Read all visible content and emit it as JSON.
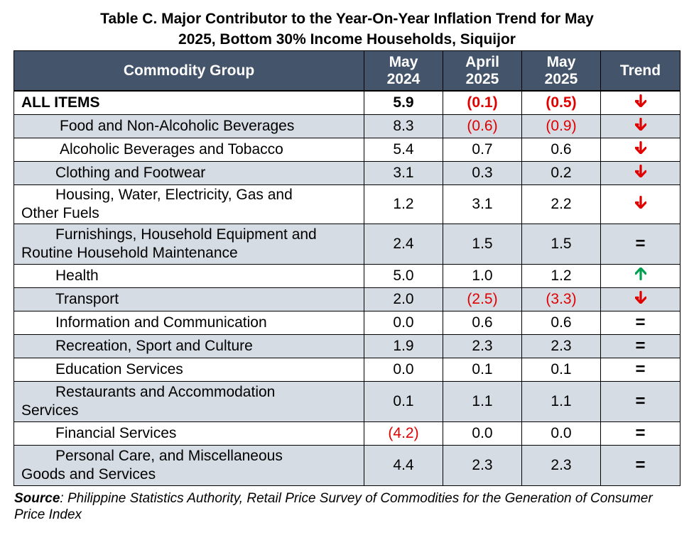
{
  "title": {
    "line1": "Table C. Major Contributor to the Year-On-Year Inflation Trend for May",
    "line2": "2025, Bottom 30% Income Households, Siquijor"
  },
  "headers": {
    "commodity": "Commodity Group",
    "col1": [
      "May",
      "2024"
    ],
    "col2": [
      "April",
      "2025"
    ],
    "col3": [
      "May",
      "2025"
    ],
    "trend": "Trend"
  },
  "rows": [
    {
      "name": "ALL ITEMS",
      "may2024": "5.9",
      "apr2025": "(0.1)",
      "may2025": "(0.5)",
      "trend": "down",
      "bold": true,
      "shaded": false,
      "indent": 0,
      "neg": [
        false,
        true,
        true
      ]
    },
    {
      "name": "Food and Non-Alcoholic Beverages",
      "may2024": "8.3",
      "apr2025": "(0.6)",
      "may2025": "(0.9)",
      "trend": "down",
      "shaded": true,
      "indent": 64,
      "neg": [
        false,
        true,
        true
      ]
    },
    {
      "name": "Alcoholic Beverages and Tobacco",
      "may2024": "5.4",
      "apr2025": "0.7",
      "may2025": "0.6",
      "trend": "down",
      "shaded": false,
      "indent": 64,
      "neg": [
        false,
        false,
        false
      ]
    },
    {
      "name": "Clothing and Footwear",
      "may2024": "3.1",
      "apr2025": "0.3",
      "may2025": "0.2",
      "trend": "down",
      "shaded": true,
      "indent": 58,
      "neg": [
        false,
        false,
        false
      ]
    },
    {
      "name1": "Housing, Water, Electricity, Gas and",
      "name2": "Other Fuels",
      "may2024": "1.2",
      "apr2025": "3.1",
      "may2025": "2.2",
      "trend": "down",
      "shaded": false,
      "neg": [
        false,
        false,
        false
      ]
    },
    {
      "name1": "Furnishings, Household Equipment and",
      "name2": "Routine Household Maintenance",
      "may2024": "2.4",
      "apr2025": "1.5",
      "may2025": "1.5",
      "trend": "equal",
      "shaded": true,
      "neg": [
        false,
        false,
        false
      ]
    },
    {
      "name": "Health",
      "may2024": "5.0",
      "apr2025": "1.0",
      "may2025": "1.2",
      "trend": "up",
      "shaded": false,
      "indent": 58,
      "neg": [
        false,
        false,
        false
      ]
    },
    {
      "name": "Transport",
      "may2024": "2.0",
      "apr2025": "(2.5)",
      "may2025": "(3.3)",
      "trend": "down",
      "shaded": true,
      "indent": 58,
      "neg": [
        false,
        true,
        true
      ]
    },
    {
      "name": "Information and Communication",
      "may2024": "0.0",
      "apr2025": "0.6",
      "may2025": "0.6",
      "trend": "equal",
      "shaded": false,
      "indent": 58,
      "neg": [
        false,
        false,
        false
      ]
    },
    {
      "name": "Recreation, Sport and Culture",
      "may2024": "1.9",
      "apr2025": "2.3",
      "may2025": "2.3",
      "trend": "equal",
      "shaded": true,
      "indent": 58,
      "neg": [
        false,
        false,
        false
      ]
    },
    {
      "name": "Education Services",
      "may2024": "0.0",
      "apr2025": "0.1",
      "may2025": "0.1",
      "trend": "equal",
      "shaded": false,
      "indent": 58,
      "neg": [
        false,
        false,
        false
      ]
    },
    {
      "name1": "Restaurants and Accommodation",
      "name2": "Services",
      "may2024": "0.1",
      "apr2025": "1.1",
      "may2025": "1.1",
      "trend": "equal",
      "shaded": true,
      "neg": [
        false,
        false,
        false
      ]
    },
    {
      "name": "Financial Services",
      "may2024": "(4.2)",
      "apr2025": "0.0",
      "may2025": "0.0",
      "trend": "equal",
      "shaded": false,
      "indent": 58,
      "neg": [
        true,
        false,
        false
      ]
    },
    {
      "name1": "Personal Care, and Miscellaneous",
      "name2": "Goods and Services",
      "may2024": "4.4",
      "apr2025": "2.3",
      "may2025": "2.3",
      "trend": "equal",
      "shaded": true,
      "neg": [
        false,
        false,
        false
      ]
    }
  ],
  "trend_symbols": {
    "down": "🡣",
    "up": "🡡",
    "equal": "="
  },
  "colors": {
    "header_bg": "#44546a",
    "shaded_row": "#d6dce4",
    "negative": "#e00000",
    "up_arrow": "#00a050",
    "down_arrow": "#e00000"
  },
  "source": {
    "label": "Source",
    "text": ": Philippine Statistics Authority, Retail Price Survey of Commodities for the Generation of Consumer Price Index"
  }
}
